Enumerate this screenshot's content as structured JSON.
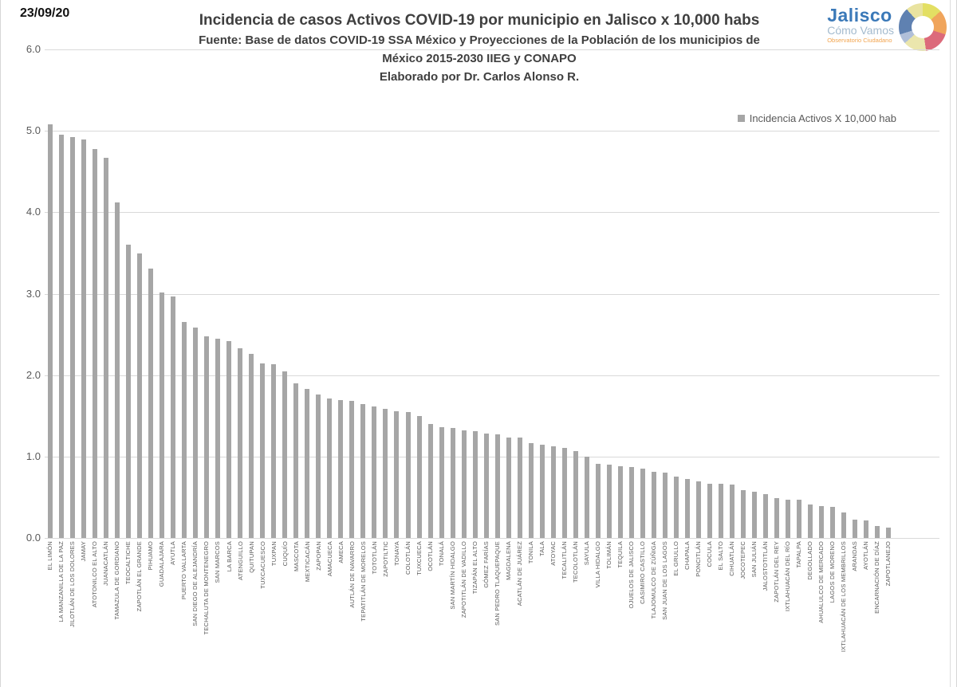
{
  "date_label": "23/09/20",
  "header": {
    "title": "Incidencia de casos Activos COVID-19 por municipio en Jalisco x 10,000 habs",
    "source_line1": "Fuente: Base de datos COVID-19 SSA México y Proyecciones de la Población de los municipios de",
    "source_line2": "México 2015-2030 IIEG y CONAPO",
    "credit": "Elaborado por Dr. Carlos Alonso R."
  },
  "logo": {
    "name": "Jalisco",
    "tagline": "Cómo Vamos",
    "subtext": "Observatorio Ciudadano"
  },
  "legend": {
    "label": "Incidencia Activos X 10,000 hab",
    "marker_color": "#a6a6a6"
  },
  "chart_data": {
    "type": "bar",
    "title": "Incidencia de casos Activos COVID-19 por municipio en Jalisco x 10,000 habs",
    "xlabel": "",
    "ylabel": "",
    "ylim": [
      0,
      6
    ],
    "yticks": [
      6.0,
      5.0,
      4.0,
      3.0,
      2.0,
      1.0,
      0.0
    ],
    "ytick_labels": [
      "6.0",
      "5.0",
      "4.0",
      "3.0",
      "2.0",
      "1.0",
      "0.0"
    ],
    "grid": true,
    "legend_position": "top-right",
    "bar_color": "#a6a6a6",
    "gridline_color": "#d9d9d9",
    "categories": [
      "EL LIMÓN",
      "LA MANZANILLA DE LA PAZ",
      "JILOTLÁN DE LOS DOLORES",
      "JAMAY",
      "ATOTONILCO EL ALTO",
      "JUANACATLÁN",
      "TAMAZULA DE GORDIANO",
      "TEOCALTICHE",
      "ZAPOTLÁN EL GRANDE",
      "PIHUAMO",
      "GUADALAJARA",
      "AYUTLA",
      "PUERTO VALLARTA",
      "SAN DIEGO DE ALEJANDRÍA",
      "TECHALUTA DE MONTENEGRO",
      "SAN MARCOS",
      "LA BARCA",
      "ATENGUILLO",
      "QUITUPAN",
      "TUXCACUESCO",
      "TUXPAN",
      "CUQUÍO",
      "MASCOTA",
      "MEXTICACÁN",
      "ZAPOPAN",
      "AMACUECA",
      "AMECA",
      "AUTLÁN DE NAVARRO",
      "TEPATITLÁN DE MORELOS",
      "TOTOTLÁN",
      "ZAPOTILTIC",
      "TONAYA",
      "COLOTLÁN",
      "TUXCUECA",
      "OCOTLÁN",
      "TONALÁ",
      "SAN MARTÍN HIDALGO",
      "ZAPOTITLÁN DE VADILLO",
      "TIZAPÁN EL ALTO",
      "GÓMEZ FARÍAS",
      "SAN PEDRO TLAQUEPAQUE",
      "MAGDALENA",
      "ACATLÁN DE JUÁREZ",
      "TONILA",
      "TALA",
      "ATOYAC",
      "TECALITLÁN",
      "TECOLOTLÁN",
      "SAYULA",
      "VILLA HIDALGO",
      "TOLIMÁN",
      "TEQUILA",
      "OJUELOS DE JALISCO",
      "CASIMIRO CASTILLO",
      "TLAJOMULCO DE ZÚÑIGA",
      "SAN JUAN DE LOS LAGOS",
      "EL GRULLO",
      "CHAPALA",
      "PONCITLÁN",
      "COCULA",
      "EL SALTO",
      "CIHUATLÁN",
      "JOCOTEPEC",
      "SAN JULIÁN",
      "JALOSTOTITLÁN",
      "ZAPOTLÁN DEL REY",
      "IXTLAHUACÁN DEL RÍO",
      "TAPALPA",
      "DEGOLLADO",
      "AHUALULCO DE MERCADO",
      "LAGOS DE MORENO",
      "IXTLAHUACÁN DE LOS MEMBRILLOS",
      "ARANDAS",
      "AYOTLÁN",
      "ENCARNACIÓN DE DÍAZ",
      "ZAPOTLANEJO"
    ],
    "values": [
      5.08,
      4.95,
      4.92,
      4.89,
      4.78,
      4.67,
      4.12,
      3.6,
      3.49,
      3.31,
      3.02,
      2.97,
      2.65,
      2.58,
      2.48,
      2.45,
      2.42,
      2.33,
      2.26,
      2.14,
      2.13,
      2.05,
      1.9,
      1.83,
      1.76,
      1.71,
      1.69,
      1.68,
      1.64,
      1.62,
      1.59,
      1.56,
      1.55,
      1.5,
      1.4,
      1.36,
      1.35,
      1.32,
      1.31,
      1.28,
      1.27,
      1.23,
      1.23,
      1.17,
      1.15,
      1.13,
      1.11,
      1.07,
      1.0,
      0.91,
      0.9,
      0.88,
      0.87,
      0.85,
      0.81,
      0.8,
      0.75,
      0.72,
      0.7,
      0.67,
      0.67,
      0.66,
      0.59,
      0.57,
      0.54,
      0.49,
      0.47,
      0.47,
      0.41,
      0.39,
      0.38,
      0.31,
      0.23,
      0.22,
      0.15,
      0.13
    ]
  }
}
